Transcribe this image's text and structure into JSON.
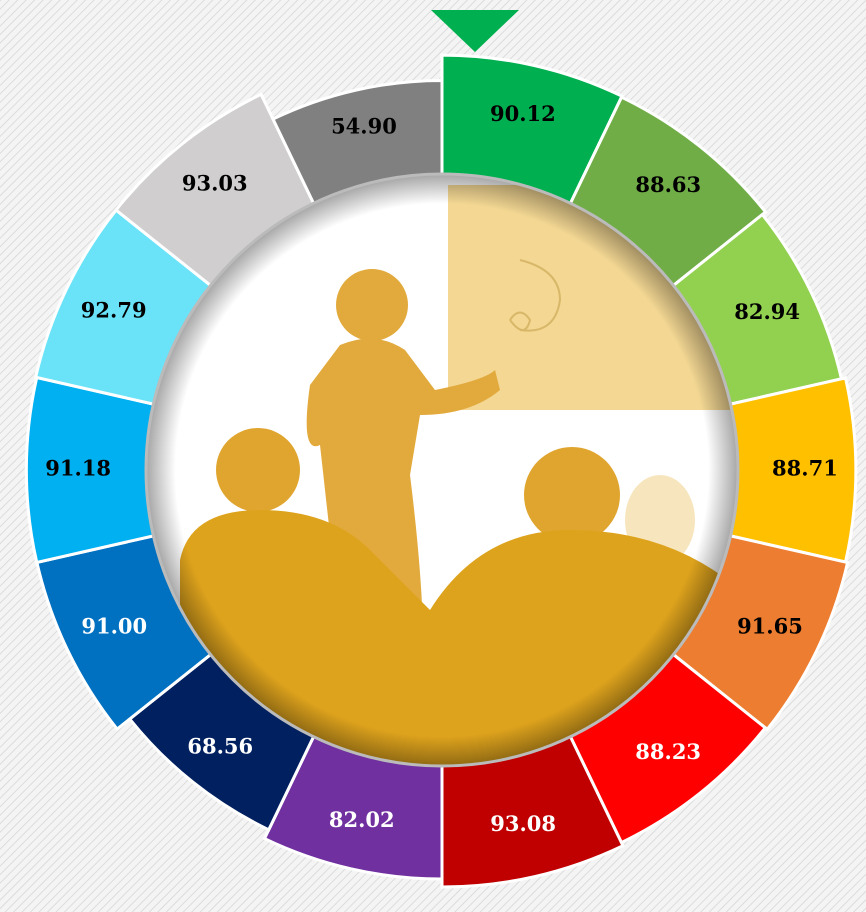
{
  "chart_data": {
    "type": "donut",
    "values": [
      90.12,
      88.63,
      82.94,
      88.71,
      91.65,
      88.23,
      93.08,
      82.02,
      68.56,
      91.0,
      91.18,
      92.79,
      93.03,
      54.9
    ],
    "value_labels": [
      "90.12",
      "88.63",
      "82.94",
      "88.71",
      "91.65",
      "88.23",
      "93.08",
      "82.02",
      "68.56",
      "91.00",
      "91.18",
      "92.79",
      "93.03",
      "54.90"
    ],
    "colors": [
      "#00b050",
      "#70ad47",
      "#92d050",
      "#ffc000",
      "#ed7d31",
      "#ff0000",
      "#c00000",
      "#7030a0",
      "#002060",
      "#0070c0",
      "#00b0f0",
      "#6ae3f9",
      "#d0cece",
      "#808080"
    ],
    "label_colors": [
      "#000000",
      "#000000",
      "#000000",
      "#000000",
      "#000000",
      "#ffffff",
      "#ffffff",
      "#ffffff",
      "#ffffff",
      "#ffffff",
      "#000000",
      "#000000",
      "#000000",
      "#000000"
    ]
  }
}
